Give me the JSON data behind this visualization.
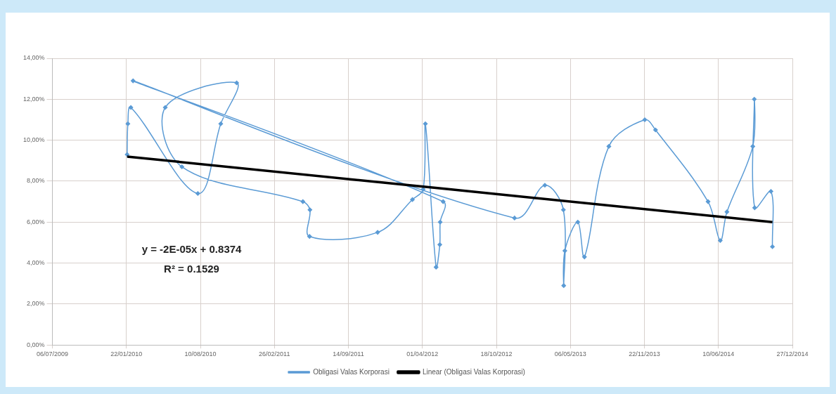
{
  "chart_data": {
    "type": "line",
    "marker": "diamond",
    "grid": true,
    "legend": "bottom",
    "xlim": [
      "2009-07-06",
      "2014-12-27"
    ],
    "xticks": [
      {
        "value": "2009-07-06",
        "label": "06/07/2009"
      },
      {
        "value": "2010-01-22",
        "label": "22/01/2010"
      },
      {
        "value": "2010-08-10",
        "label": "10/08/2010"
      },
      {
        "value": "2011-02-26",
        "label": "26/02/2011"
      },
      {
        "value": "2011-09-14",
        "label": "14/09/2011"
      },
      {
        "value": "2012-04-01",
        "label": "01/04/2012"
      },
      {
        "value": "2012-10-18",
        "label": "18/10/2012"
      },
      {
        "value": "2013-05-06",
        "label": "06/05/2013"
      },
      {
        "value": "2013-11-22",
        "label": "22/11/2013"
      },
      {
        "value": "2014-06-10",
        "label": "10/06/2014"
      },
      {
        "value": "2014-12-27",
        "label": "27/12/2014"
      }
    ],
    "ylim": [
      0,
      14
    ],
    "yticks": [
      {
        "value": 0,
        "label": "0,00%"
      },
      {
        "value": 2,
        "label": "2,00%"
      },
      {
        "value": 4,
        "label": "4,00%"
      },
      {
        "value": 6,
        "label": "6,00%"
      },
      {
        "value": 8,
        "label": "8,00%"
      },
      {
        "value": 10,
        "label": "10,00%"
      },
      {
        "value": 12,
        "label": "12,00%"
      },
      {
        "value": 14,
        "label": "14,00%"
      }
    ],
    "series": [
      {
        "name": "Obligasi Valas Korporasi",
        "color": "#5b9bd5",
        "x": [
          "2010-01-24",
          "2010-01-26",
          "2010-02-03",
          "2010-08-03",
          "2010-10-04",
          "2010-11-16",
          "2010-05-07",
          "2010-06-21",
          "2011-05-14",
          "2011-06-02",
          "2011-06-01",
          "2011-12-02",
          "2012-03-05",
          "2012-04-03",
          "2012-04-09",
          "2012-05-08",
          "2012-05-18",
          "2012-05-19",
          "2012-05-27",
          "2010-02-09",
          "2012-12-06",
          "2013-02-26",
          "2013-04-17",
          "2013-04-18",
          "2013-04-21",
          "2013-05-26",
          "2013-06-13",
          "2013-08-18",
          "2013-11-23",
          "2013-12-22",
          "2014-05-13",
          "2014-06-15",
          "2014-07-03",
          "2014-09-11",
          "2014-09-15",
          "2014-09-16",
          "2014-10-30",
          "2014-11-03"
        ],
        "values": [
          9.3,
          10.8,
          11.6,
          7.4,
          10.8,
          12.8,
          11.6,
          8.7,
          7.0,
          6.6,
          5.3,
          5.5,
          7.1,
          7.6,
          10.8,
          3.8,
          4.9,
          6.0,
          7.0,
          12.9,
          6.2,
          7.8,
          6.6,
          2.9,
          4.6,
          6.0,
          4.3,
          9.7,
          11.0,
          10.5,
          7.0,
          5.1,
          6.5,
          9.7,
          12.0,
          6.7,
          7.5,
          4.8
        ]
      },
      {
        "name": "Linear (Obligasi Valas Korporasi)",
        "color": "#000000",
        "marker": "none",
        "x": [
          "2010-01-24",
          "2014-11-03"
        ],
        "values": [
          9.2,
          6.0
        ]
      }
    ],
    "annotations": [
      "y = -2E-05x + 0.8374",
      "R² = 0.1529"
    ]
  }
}
